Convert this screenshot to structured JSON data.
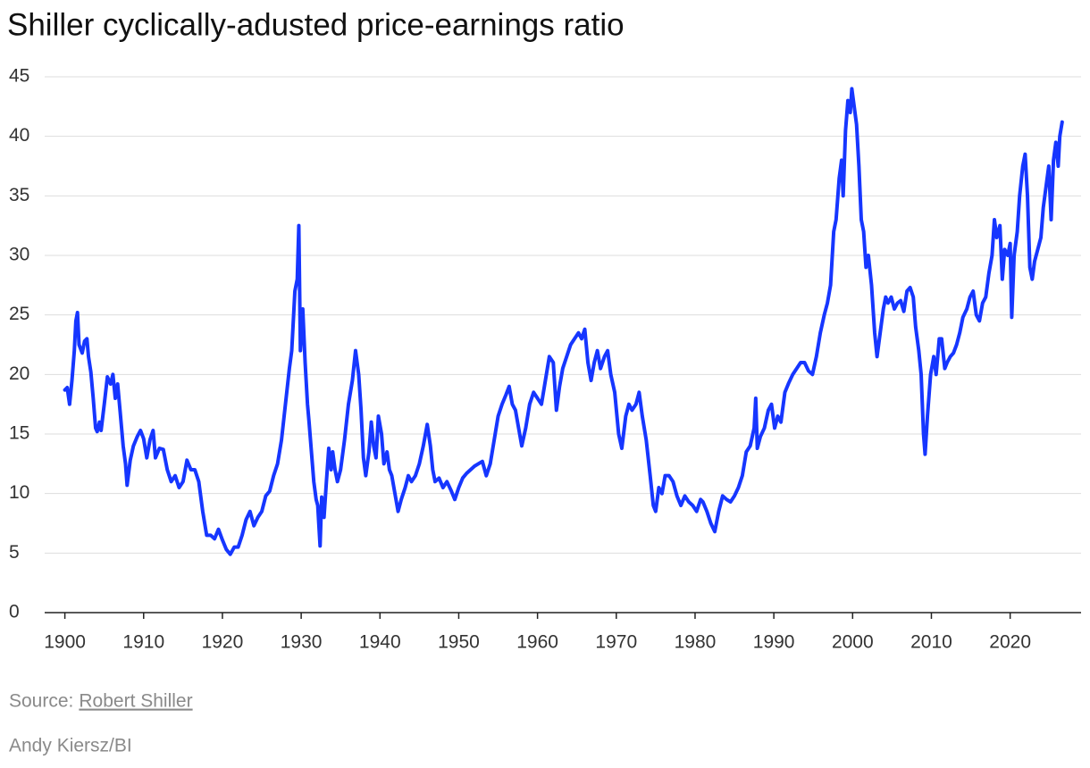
{
  "chart_data": {
    "type": "line",
    "title": "Shiller cyclically-adusted price-earnings ratio",
    "source_label": "Source:",
    "source": "Robert Shiller",
    "credit": "Andy Kiersz/BI",
    "xlim": [
      1892.9,
      2029.0
    ],
    "xticks": [
      1900,
      1910,
      1920,
      1930,
      1940,
      1950,
      1960,
      1970,
      1980,
      1990,
      2000,
      2010,
      2020
    ],
    "ylim": [
      0,
      45
    ],
    "yticks": [
      0,
      5,
      10,
      15,
      20,
      25,
      30,
      35,
      40,
      45
    ],
    "grid": true,
    "x": [
      1900.0,
      1900.3,
      1900.6,
      1900.9,
      1901.2,
      1901.4,
      1901.6,
      1901.8,
      1902.2,
      1902.5,
      1902.8,
      1903.0,
      1903.3,
      1903.6,
      1903.9,
      1904.1,
      1904.4,
      1904.6,
      1905.0,
      1905.4,
      1905.8,
      1906.1,
      1906.4,
      1906.7,
      1907.0,
      1907.4,
      1907.7,
      1907.9,
      1908.3,
      1908.7,
      1909.2,
      1909.6,
      1910.0,
      1910.4,
      1910.8,
      1911.2,
      1911.5,
      1912.0,
      1912.5,
      1913.0,
      1913.5,
      1914.0,
      1914.5,
      1915.0,
      1915.5,
      1916.0,
      1916.5,
      1917.0,
      1917.5,
      1918.0,
      1918.5,
      1919.0,
      1919.5,
      1920.0,
      1920.5,
      1921.0,
      1921.5,
      1922.0,
      1922.5,
      1923.0,
      1923.5,
      1924.0,
      1924.5,
      1925.0,
      1925.5,
      1926.0,
      1926.5,
      1927.0,
      1927.5,
      1928.0,
      1928.5,
      1928.8,
      1929.2,
      1929.5,
      1929.7,
      1929.9,
      1930.2,
      1930.5,
      1930.8,
      1931.0,
      1931.3,
      1931.6,
      1931.9,
      1932.1,
      1932.4,
      1932.6,
      1932.9,
      1933.2,
      1933.5,
      1933.8,
      1934.0,
      1934.3,
      1934.6,
      1935.0,
      1935.5,
      1936.0,
      1936.5,
      1936.9,
      1937.3,
      1937.6,
      1937.9,
      1938.2,
      1938.6,
      1938.9,
      1939.2,
      1939.5,
      1939.8,
      1940.2,
      1940.5,
      1940.9,
      1941.2,
      1941.5,
      1941.9,
      1942.3,
      1942.7,
      1943.2,
      1943.6,
      1944.0,
      1944.5,
      1945.0,
      1945.5,
      1946.0,
      1946.4,
      1946.7,
      1947.0,
      1947.5,
      1948.0,
      1948.5,
      1949.0,
      1949.5,
      1950.0,
      1950.5,
      1951.0,
      1951.5,
      1952.0,
      1952.5,
      1953.0,
      1953.5,
      1954.0,
      1954.5,
      1955.0,
      1955.5,
      1956.0,
      1956.4,
      1956.8,
      1957.2,
      1957.6,
      1958.0,
      1958.5,
      1959.0,
      1959.5,
      1960.0,
      1960.5,
      1961.0,
      1961.5,
      1962.0,
      1962.4,
      1962.8,
      1963.2,
      1963.7,
      1964.2,
      1964.7,
      1965.2,
      1965.6,
      1966.0,
      1966.4,
      1966.8,
      1967.2,
      1967.6,
      1968.0,
      1968.5,
      1968.9,
      1969.3,
      1969.8,
      1970.3,
      1970.7,
      1971.2,
      1971.6,
      1972.0,
      1972.5,
      1972.9,
      1973.3,
      1973.8,
      1974.3,
      1974.7,
      1975.0,
      1975.4,
      1975.8,
      1976.2,
      1976.7,
      1977.2,
      1977.7,
      1978.2,
      1978.7,
      1979.2,
      1979.7,
      1980.2,
      1980.7,
      1981.0,
      1981.5,
      1982.0,
      1982.5,
      1983.0,
      1983.5,
      1984.0,
      1984.5,
      1985.0,
      1985.5,
      1986.0,
      1986.5,
      1987.0,
      1987.5,
      1987.7,
      1987.9,
      1988.3,
      1988.8,
      1989.3,
      1989.7,
      1990.1,
      1990.5,
      1990.9,
      1991.4,
      1991.9,
      1992.4,
      1992.9,
      1993.4,
      1993.9,
      1994.4,
      1994.9,
      1995.4,
      1995.9,
      1996.4,
      1996.8,
      1997.2,
      1997.6,
      1997.9,
      1998.3,
      1998.6,
      1998.8,
      1999.1,
      1999.4,
      1999.7,
      1999.9,
      2000.2,
      2000.5,
      2000.8,
      2001.1,
      2001.4,
      2001.7,
      2002.0,
      2002.4,
      2002.8,
      2003.1,
      2003.5,
      2003.9,
      2004.2,
      2004.5,
      2004.9,
      2005.3,
      2005.7,
      2006.1,
      2006.5,
      2006.9,
      2007.3,
      2007.7,
      2008.0,
      2008.4,
      2008.7,
      2009.0,
      2009.2,
      2009.5,
      2009.9,
      2010.3,
      2010.6,
      2011.0,
      2011.3,
      2011.7,
      2012.0,
      2012.4,
      2012.8,
      2013.2,
      2013.6,
      2014.0,
      2014.5,
      2014.9,
      2015.3,
      2015.7,
      2016.1,
      2016.5,
      2016.9,
      2017.3,
      2017.7,
      2018.0,
      2018.3,
      2018.7,
      2019.0,
      2019.3,
      2019.7,
      2020.0,
      2020.2,
      2020.5,
      2020.9,
      2021.2,
      2021.6,
      2021.9,
      2022.2,
      2022.5,
      2022.8,
      2023.1,
      2023.5,
      2023.9,
      2024.2,
      2024.6,
      2024.9,
      2025.2,
      2025.5,
      2025.8,
      2026.1,
      2026.3,
      2026.6
    ],
    "series": [
      {
        "color": "#1636ff",
        "values": [
          18.7,
          18.9,
          17.5,
          19.5,
          22,
          24.5,
          25.2,
          22.5,
          21.8,
          22.8,
          23,
          21.5,
          20.2,
          18,
          15.5,
          15.2,
          16,
          15.3,
          17.5,
          19.8,
          19.2,
          20,
          18,
          19.2,
          17,
          14,
          12.5,
          10.7,
          12.8,
          14,
          14.8,
          15.3,
          14.6,
          13,
          14.5,
          15.3,
          13,
          13.8,
          13.7,
          12,
          11,
          11.5,
          10.5,
          11,
          12.8,
          12,
          12,
          11,
          8.5,
          6.5,
          6.5,
          6.2,
          7,
          6.1,
          5.3,
          4.9,
          5.5,
          5.5,
          6.5,
          7.8,
          8.5,
          7.3,
          8,
          8.5,
          9.8,
          10.2,
          11.5,
          12.5,
          14.5,
          17.5,
          20.5,
          22,
          27,
          28,
          32.5,
          22,
          25.5,
          21,
          17.5,
          16,
          13.5,
          11,
          9.5,
          9,
          5.6,
          9.7,
          8,
          11,
          13.8,
          12,
          13.5,
          12,
          11,
          12,
          14.5,
          17.5,
          19.5,
          22,
          20,
          17,
          13,
          11.5,
          13.5,
          16,
          14,
          13,
          16.5,
          15,
          12.5,
          13.5,
          12,
          11.5,
          10,
          8.5,
          9.5,
          10.5,
          11.5,
          11,
          11.5,
          12.5,
          14,
          15.8,
          14,
          12,
          11,
          11.3,
          10.5,
          11,
          10.3,
          9.5,
          10.5,
          11.3,
          11.7,
          12,
          12.3,
          12.5,
          12.7,
          11.5,
          12.5,
          14.5,
          16.5,
          17.5,
          18.3,
          19,
          17.5,
          17,
          15.5,
          14,
          15.5,
          17.5,
          18.5,
          18,
          17.5,
          19.5,
          21.5,
          21,
          17,
          19,
          20.5,
          21.5,
          22.5,
          23,
          23.5,
          23,
          23.8,
          21,
          19.5,
          21,
          22,
          20.5,
          21.5,
          22,
          20,
          18.5,
          15,
          13.8,
          16.5,
          17.5,
          17,
          17.5,
          18.5,
          16.5,
          14.5,
          11.5,
          9,
          8.5,
          10.5,
          10,
          11.5,
          11.5,
          11,
          9.8,
          9,
          9.8,
          9.3,
          9,
          8.5,
          9.5,
          9.3,
          8.5,
          7.5,
          6.8,
          8.5,
          9.8,
          9.5,
          9.3,
          9.8,
          10.5,
          11.5,
          13.5,
          14,
          15.5,
          18,
          13.8,
          14.8,
          15.5,
          17,
          17.5,
          15.5,
          16.5,
          16,
          18.5,
          19.3,
          20,
          20.5,
          21,
          21,
          20.3,
          20,
          21.5,
          23.5,
          25,
          26,
          27.5,
          32,
          33,
          36.5,
          38,
          35,
          40.5,
          43,
          42,
          44,
          42.5,
          41,
          37.5,
          33,
          32,
          29,
          30,
          27.5,
          23.5,
          21.5,
          23.5,
          25.5,
          26.5,
          26,
          26.5,
          25.5,
          26,
          26.2,
          25.3,
          27,
          27.3,
          26.5,
          24,
          22,
          20,
          15,
          13.3,
          16.5,
          20,
          21.5,
          20,
          23,
          23,
          20.5,
          21,
          21.5,
          21.8,
          22.5,
          23.5,
          24.8,
          25.5,
          26.5,
          27,
          25,
          24.5,
          26,
          26.5,
          28.5,
          30,
          33,
          31.5,
          32.5,
          28,
          30.5,
          30,
          31,
          24.8,
          30,
          32,
          35,
          37.5,
          38.5,
          35,
          29,
          28,
          29.5,
          30.5,
          31.5,
          34,
          36,
          37.5,
          33,
          38,
          39.5,
          37.5,
          40,
          41.2
        ]
      }
    ]
  }
}
